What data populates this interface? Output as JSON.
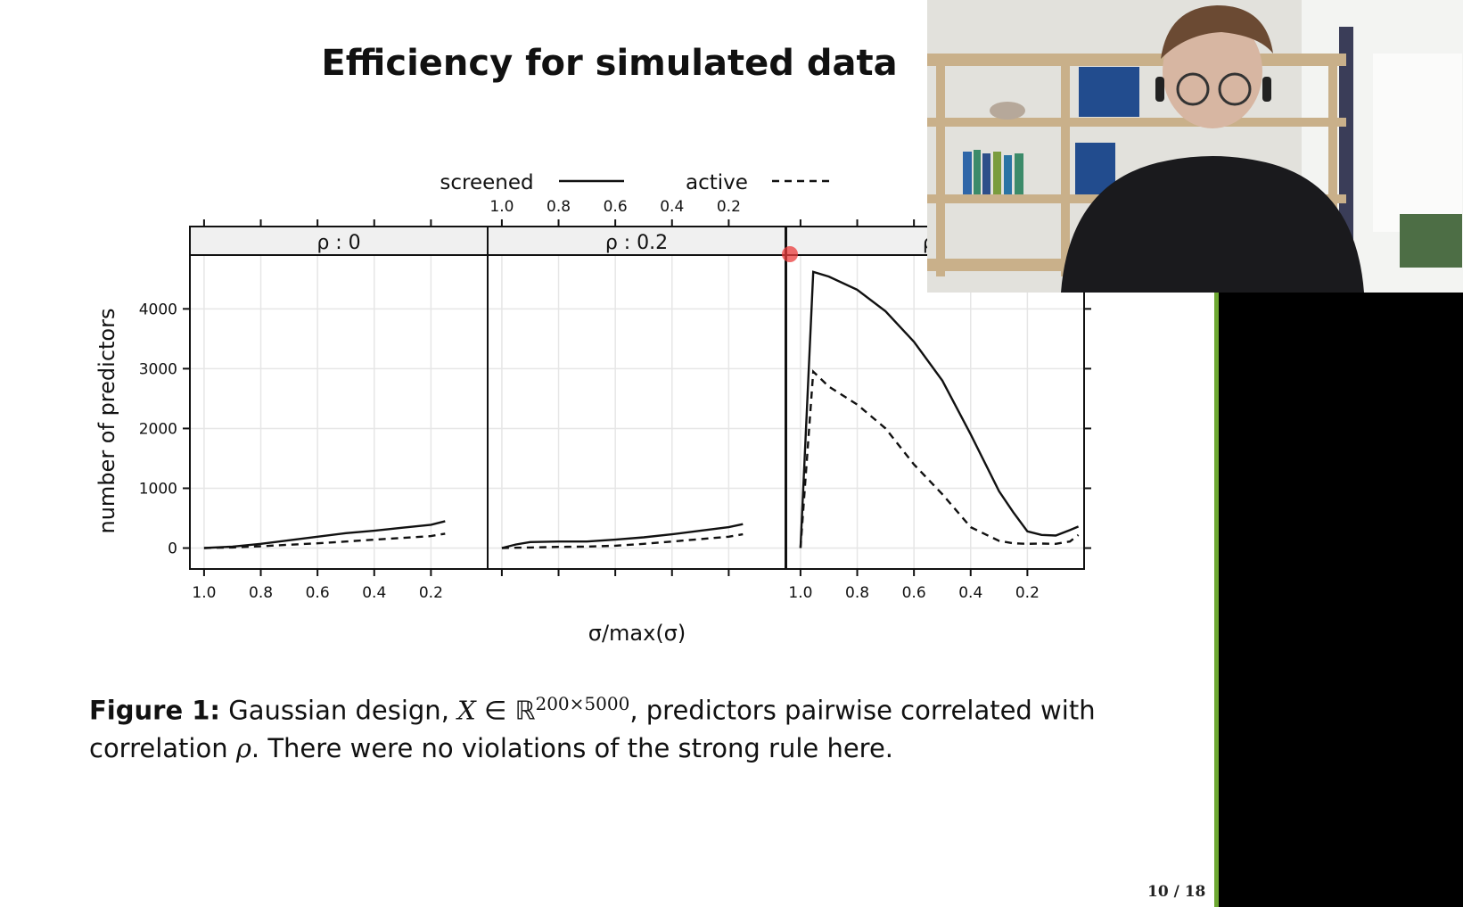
{
  "slide": {
    "title": "Efficiency for simulated data",
    "page_number": "10 / 18"
  },
  "caption": {
    "label": "Figure 1:",
    "text_a": " Gaussian design, ",
    "math_var": "X",
    "math_in": " ∈ ℝ",
    "math_sup": "200×5000",
    "text_b": ", predictors pairwise correlated with correlation ",
    "rho": "ρ",
    "text_c": ". There were no violations of the strong rule here."
  },
  "chart_data": {
    "type": "line",
    "xlabel": "σ/max(σ)",
    "ylabel": "number of predictors",
    "xlim": [
      1.05,
      0.0
    ],
    "ylim": [
      -350,
      4900
    ],
    "x_ticks": [
      1.0,
      0.8,
      0.6,
      0.4,
      0.2
    ],
    "x_tick_labels": [
      "1.0",
      "0.8",
      "0.6",
      "0.4",
      "0.2"
    ],
    "y_ticks": [
      0,
      1000,
      2000,
      3000,
      4000
    ],
    "y_tick_labels": [
      "0",
      "1000",
      "2000",
      "3000",
      "4000"
    ],
    "legend": {
      "position": "top",
      "entries": [
        {
          "label": "screened",
          "style": "solid"
        },
        {
          "label": "active",
          "style": "dashed"
        }
      ]
    },
    "panels": [
      {
        "strip": "ρ : 0",
        "series": [
          {
            "name": "screened",
            "x": [
              1.0,
              0.9,
              0.8,
              0.7,
              0.6,
              0.5,
              0.4,
              0.3,
              0.2,
              0.15
            ],
            "y": [
              0,
              25,
              70,
              130,
              190,
              250,
              290,
              340,
              390,
              450
            ]
          },
          {
            "name": "active",
            "x": [
              1.0,
              0.9,
              0.8,
              0.7,
              0.6,
              0.5,
              0.4,
              0.3,
              0.2,
              0.15
            ],
            "y": [
              0,
              10,
              30,
              55,
              80,
              110,
              140,
              170,
              200,
              240
            ]
          }
        ]
      },
      {
        "strip": "ρ : 0.2",
        "series": [
          {
            "name": "screened",
            "x": [
              1.0,
              0.95,
              0.9,
              0.8,
              0.7,
              0.6,
              0.5,
              0.4,
              0.3,
              0.2,
              0.15
            ],
            "y": [
              0,
              60,
              100,
              110,
              110,
              140,
              180,
              230,
              290,
              350,
              400
            ]
          },
          {
            "name": "active",
            "x": [
              1.0,
              0.9,
              0.8,
              0.7,
              0.6,
              0.5,
              0.4,
              0.3,
              0.2,
              0.15
            ],
            "y": [
              0,
              10,
              20,
              25,
              40,
              70,
              110,
              150,
              190,
              230
            ]
          }
        ]
      },
      {
        "strip": "ρ :",
        "series": [
          {
            "name": "screened",
            "x": [
              1.0,
              0.955,
              0.9,
              0.8,
              0.7,
              0.6,
              0.5,
              0.4,
              0.3,
              0.25,
              0.2,
              0.15,
              0.1,
              0.05,
              0.02
            ],
            "y": [
              0,
              4620,
              4540,
              4320,
              3960,
              3450,
              2800,
              1900,
              950,
              600,
              280,
              220,
              210,
              300,
              360
            ]
          },
          {
            "name": "active",
            "x": [
              1.0,
              0.955,
              0.9,
              0.8,
              0.7,
              0.6,
              0.5,
              0.4,
              0.3,
              0.25,
              0.2,
              0.15,
              0.1,
              0.05,
              0.02
            ],
            "y": [
              0,
              2950,
              2700,
              2400,
              2000,
              1400,
              900,
              350,
              120,
              80,
              70,
              75,
              70,
              110,
              220
            ]
          }
        ]
      }
    ]
  },
  "webcam": {
    "icon": "person-on-webcam-icon"
  },
  "colors": {
    "line": "#111111",
    "grid": "#e6e6e6",
    "strip_bg": "#f0f0f0",
    "green_border": "#6ea832",
    "cursor": "#eb3c3c"
  }
}
